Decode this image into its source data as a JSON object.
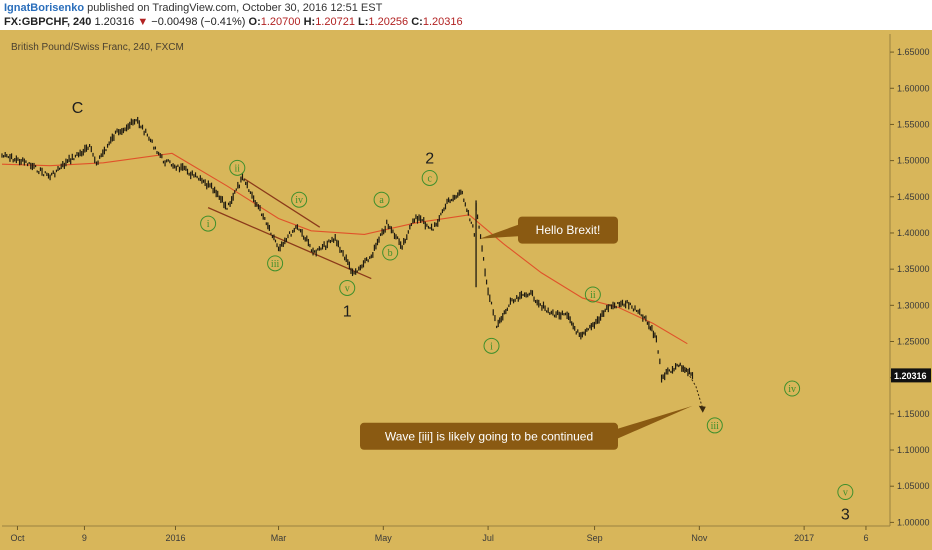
{
  "header": {
    "author": "IgnatBorisenko",
    "published": "published on TradingView.com, October 30, 2016 12:51 EST",
    "symbol": "FX:GBPCHF, 240",
    "last": "1.20316",
    "arrow": "▼",
    "change": "−0.00498 (−0.41%)",
    "o_label": "O:",
    "o_value": "1.20700",
    "h_label": "H:",
    "h_value": "1.20721",
    "l_label": "L:",
    "l_value": "1.20256",
    "c_label": "C:",
    "c_value": "1.20316"
  },
  "colors": {
    "background": "#d8b65a",
    "candles": "#1e1a10",
    "moving_average": "#e0522a",
    "trendline": "#8b3a1a",
    "wave_label": "#3f8f2c",
    "callout": "#8a5a12",
    "price_tag": "#111111"
  },
  "chart_data": {
    "type": "line",
    "title": "British Pound/Swiss Franc, 240, FXCM",
    "x_ticks": [
      "Oct",
      "9",
      "2016",
      "Mar",
      "May",
      "Jul",
      "Sep",
      "Nov",
      "2017",
      "6"
    ],
    "y_ticks": [
      "1.65000",
      "1.60000",
      "1.55000",
      "1.50000",
      "1.45000",
      "1.40000",
      "1.35000",
      "1.30000",
      "1.25000",
      "1.20000",
      "1.15000",
      "1.10000",
      "1.05000",
      "1.00000"
    ],
    "ylim": [
      0.995,
      1.675
    ],
    "current_price_label": "1.20316",
    "series": [
      {
        "role": "price",
        "x": [
          "2015-09-22",
          "2015-10-05",
          "2015-10-20",
          "2015-11-01",
          "2015-11-12",
          "2015-11-16",
          "2015-11-28",
          "2015-12-10",
          "2015-12-25",
          "2016-01-08",
          "2016-01-22",
          "2016-01-31",
          "2016-02-09",
          "2016-02-22",
          "2016-03-01",
          "2016-03-12",
          "2016-03-22",
          "2016-04-03",
          "2016-04-14",
          "2016-04-24",
          "2016-05-03",
          "2016-05-12",
          "2016-05-20",
          "2016-05-30",
          "2016-06-08",
          "2016-06-16",
          "2016-06-23",
          "2016-06-24",
          "2016-07-01",
          "2016-07-06",
          "2016-07-14",
          "2016-07-25",
          "2016-08-05",
          "2016-08-16",
          "2016-08-24",
          "2016-08-31",
          "2016-09-09",
          "2016-09-20",
          "2016-09-30",
          "2016-10-07",
          "2016-10-10",
          "2016-10-20",
          "2016-10-28"
        ],
        "y": [
          1.507,
          1.498,
          1.478,
          1.502,
          1.518,
          1.497,
          1.54,
          1.555,
          1.5,
          1.485,
          1.462,
          1.435,
          1.475,
          1.42,
          1.38,
          1.41,
          1.372,
          1.392,
          1.342,
          1.368,
          1.412,
          1.383,
          1.423,
          1.405,
          1.445,
          1.455,
          1.4,
          1.435,
          1.32,
          1.27,
          1.303,
          1.318,
          1.29,
          1.285,
          1.255,
          1.272,
          1.298,
          1.303,
          1.282,
          1.255,
          1.202,
          1.218,
          1.203
        ]
      },
      {
        "role": "moving_average",
        "x": [
          "2015-09-22",
          "2015-10-20",
          "2015-11-20",
          "2015-12-30",
          "2016-01-31",
          "2016-03-01",
          "2016-03-20",
          "2016-04-20",
          "2016-05-20",
          "2016-06-20",
          "2016-07-10",
          "2016-08-01",
          "2016-08-25",
          "2016-09-15",
          "2016-10-05",
          "2016-10-25"
        ],
        "y": [
          1.495,
          1.493,
          1.497,
          1.51,
          1.465,
          1.42,
          1.403,
          1.398,
          1.414,
          1.425,
          1.385,
          1.345,
          1.31,
          1.297,
          1.275,
          1.247
        ]
      }
    ],
    "projection": {
      "x": [
        "2016-10-20",
        "2016-10-25",
        "2016-10-30",
        "2016-11-03"
      ],
      "y": [
        1.218,
        1.208,
        1.188,
        1.157
      ]
    },
    "trendlines": [
      {
        "x": [
          "2016-02-10",
          "2016-03-25"
        ],
        "y": [
          1.475,
          1.408
        ]
      },
      {
        "x": [
          "2016-01-20",
          "2016-04-24"
        ],
        "y": [
          1.435,
          1.337
        ]
      }
    ],
    "wave_labels": [
      {
        "text": "C",
        "x": "2015-11-05",
        "y": 1.574,
        "style": "plain"
      },
      {
        "text": "ii",
        "x": "2016-02-06",
        "y": 1.49,
        "style": "circle"
      },
      {
        "text": "iv",
        "x": "2016-03-13",
        "y": 1.446,
        "style": "circle"
      },
      {
        "text": "i",
        "x": "2016-01-20",
        "y": 1.413,
        "style": "circle"
      },
      {
        "text": "iii",
        "x": "2016-02-28",
        "y": 1.358,
        "style": "circle"
      },
      {
        "text": "v",
        "x": "2016-04-10",
        "y": 1.324,
        "style": "circle"
      },
      {
        "text": "1",
        "x": "2016-04-10",
        "y": 1.293,
        "style": "plain"
      },
      {
        "text": "a",
        "x": "2016-04-30",
        "y": 1.446,
        "style": "circle"
      },
      {
        "text": "b",
        "x": "2016-05-05",
        "y": 1.373,
        "style": "circle"
      },
      {
        "text": "c",
        "x": "2016-05-28",
        "y": 1.476,
        "style": "circle"
      },
      {
        "text": "2",
        "x": "2016-05-28",
        "y": 1.504,
        "style": "plain"
      },
      {
        "text": "i",
        "x": "2016-07-03",
        "y": 1.244,
        "style": "circle"
      },
      {
        "text": "ii",
        "x": "2016-08-31",
        "y": 1.315,
        "style": "circle"
      },
      {
        "text": "iii",
        "x": "2016-11-10",
        "y": 1.134,
        "style": "circle"
      },
      {
        "text": "iv",
        "x": "2016-12-25",
        "y": 1.185,
        "style": "circle"
      },
      {
        "text": "v",
        "x": "2017-01-25",
        "y": 1.042,
        "style": "circle"
      },
      {
        "text": "3",
        "x": "2017-01-25",
        "y": 1.012,
        "style": "plain"
      }
    ],
    "callouts": [
      {
        "text": "Hello Brexit!",
        "box_x": "2016-07-15",
        "box_y": 1.404,
        "pointer_x": "2016-06-26",
        "pointer_y": 1.392
      },
      {
        "text": "Wave [iii] is likely going to be continued",
        "box_x": "2016-07-15",
        "box_y": 1.119,
        "pointer_x": "2016-10-28",
        "pointer_y": 1.161
      }
    ]
  }
}
